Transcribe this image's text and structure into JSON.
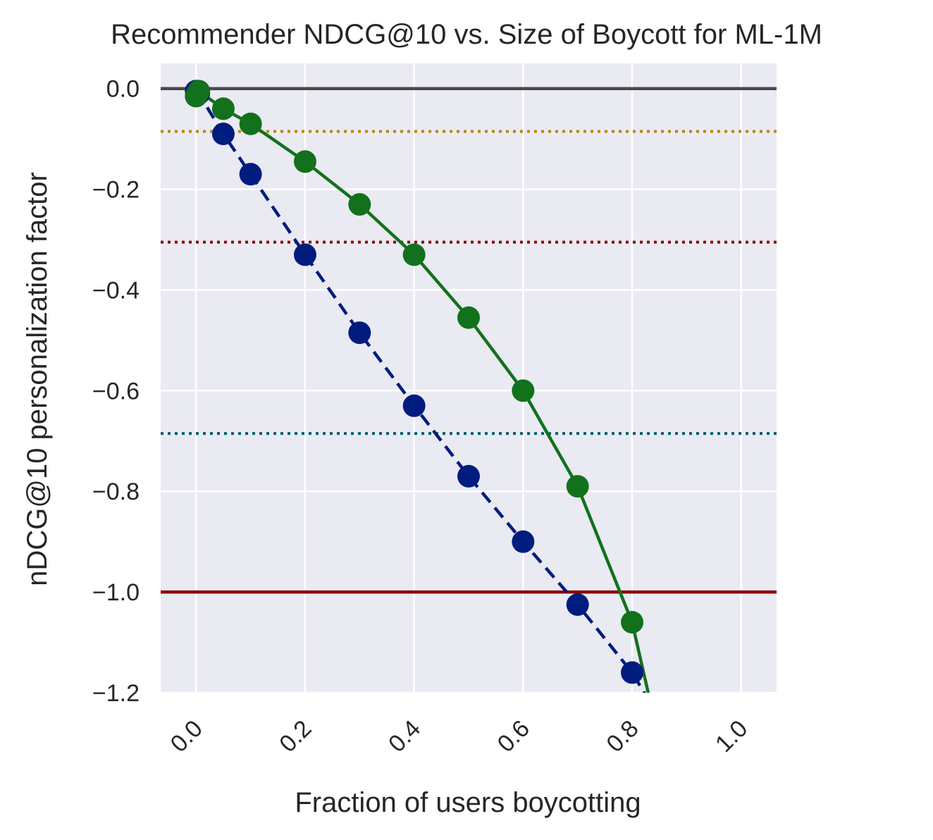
{
  "chart_data": {
    "type": "line",
    "title": "Recommender NDCG@10 vs. Size of Boycott for ML-1M",
    "xlabel": "Fraction of users boycotting",
    "ylabel": "nDCG@10 personalization factor",
    "xlim": [
      -0.065,
      1.065
    ],
    "ylim": [
      -1.2,
      0.05
    ],
    "xticks": [
      0.0,
      0.2,
      0.4,
      0.6,
      0.8,
      1.0
    ],
    "xtick_labels": [
      "0.0",
      "0.2",
      "0.4",
      "0.6",
      "0.8",
      "1.0"
    ],
    "yticks": [
      0.0,
      -0.2,
      -0.4,
      -0.6,
      -0.8,
      -1.0,
      -1.2
    ],
    "ytick_labels": [
      "0.0",
      "−0.2",
      "−0.4",
      "−0.6",
      "−0.8",
      "−1.0",
      "−1.2"
    ],
    "grid": true,
    "background": "#eaeaf2",
    "hlines": [
      {
        "y": 0.0,
        "color": "#4a4a4a",
        "style": "solid"
      },
      {
        "y": -0.085,
        "color": "#b8860b",
        "style": "dotted"
      },
      {
        "y": -0.305,
        "color": "#8b0000",
        "style": "dotted"
      },
      {
        "y": -0.685,
        "color": "#005f6b",
        "style": "dotted"
      },
      {
        "y": -1.0,
        "color": "#8b0000",
        "style": "solid"
      }
    ],
    "series": [
      {
        "color": "#001c7f",
        "style": "dashed",
        "x": [
          0.0,
          0.005,
          0.05,
          0.1,
          0.2,
          0.3,
          0.4,
          0.5,
          0.6,
          0.7,
          0.8,
          0.85
        ],
        "y": [
          -0.005,
          -0.01,
          -0.09,
          -0.17,
          -0.33,
          -0.485,
          -0.63,
          -0.77,
          -0.9,
          -1.025,
          -1.16,
          -1.25
        ],
        "markers": [
          true,
          true,
          true,
          true,
          true,
          true,
          true,
          true,
          true,
          true,
          true,
          false
        ]
      },
      {
        "color": "#12711c",
        "style": "solid",
        "x": [
          0.0,
          0.005,
          0.05,
          0.1,
          0.2,
          0.3,
          0.4,
          0.5,
          0.6,
          0.7,
          0.8,
          0.84
        ],
        "y": [
          -0.015,
          -0.005,
          -0.04,
          -0.07,
          -0.145,
          -0.23,
          -0.33,
          -0.455,
          -0.6,
          -0.79,
          -1.06,
          -1.25
        ],
        "markers": [
          true,
          true,
          true,
          true,
          true,
          true,
          true,
          true,
          true,
          true,
          true,
          false
        ]
      }
    ]
  }
}
